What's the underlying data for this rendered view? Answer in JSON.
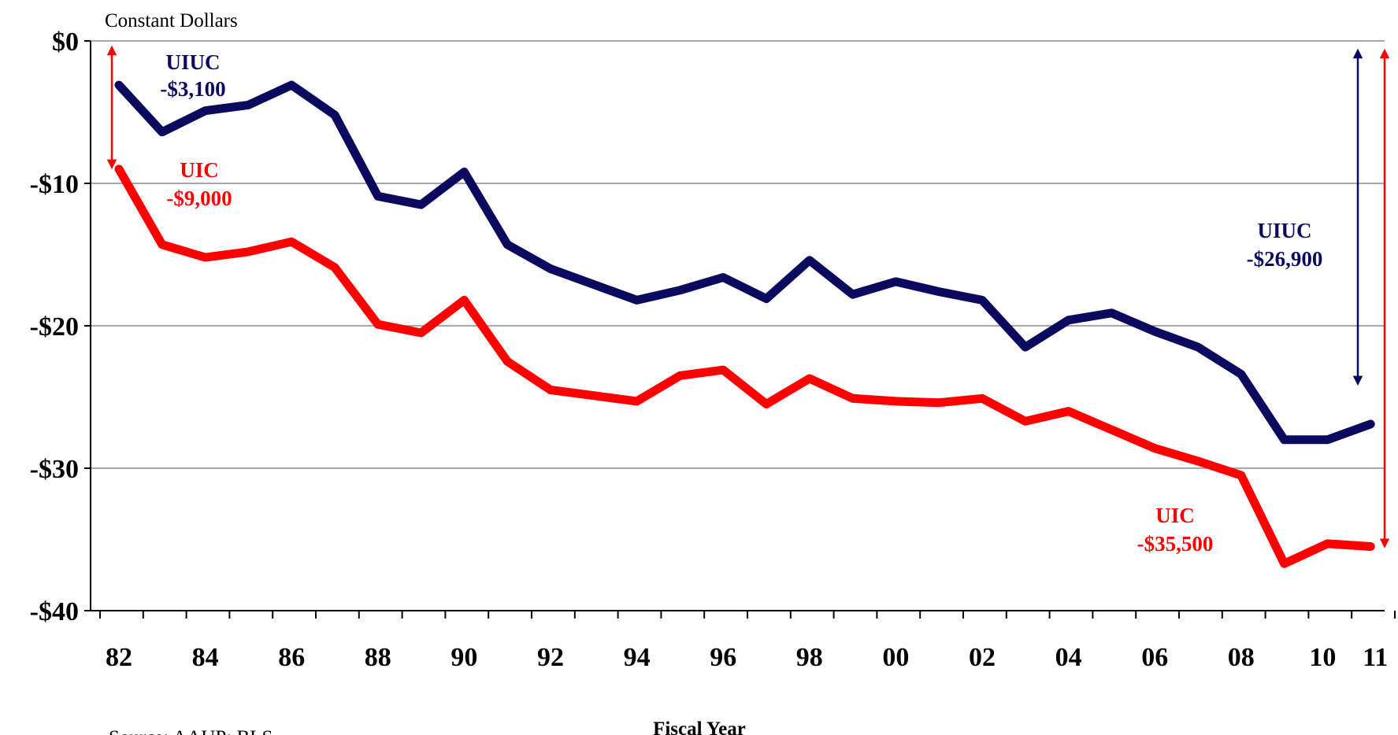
{
  "chart_data": {
    "type": "line",
    "title": "",
    "ylabel": "Constant Dollars",
    "xlabel": "Fiscal Year",
    "source": "Source:  AAUP;  BLS",
    "ylim": [
      -40,
      0
    ],
    "y_ticks": [
      0,
      -10,
      -20,
      -30,
      -40
    ],
    "y_tick_labels": [
      "$0",
      "-$10",
      "-$20",
      "-$30",
      "-$40"
    ],
    "x": [
      "82",
      "83",
      "84",
      "85",
      "86",
      "87",
      "88",
      "89",
      "90",
      "91",
      "92",
      "93",
      "94",
      "95",
      "96",
      "97",
      "98",
      "99",
      "00",
      "01",
      "02",
      "03",
      "04",
      "05",
      "06",
      "07",
      "08",
      "09",
      "10",
      "11"
    ],
    "x_tick_labels": [
      "82",
      "84",
      "86",
      "88",
      "90",
      "92",
      "94",
      "96",
      "98",
      "00",
      "02",
      "04",
      "06",
      "08",
      "10",
      "11"
    ],
    "grid": true,
    "series": [
      {
        "name": "UIUC",
        "color": "#0a0a5e",
        "values": [
          -3.1,
          -6.4,
          -4.9,
          -4.5,
          -3.1,
          -5.2,
          -10.9,
          -11.5,
          -9.2,
          -14.3,
          -16.0,
          -17.1,
          -18.2,
          -17.5,
          -16.6,
          -18.1,
          -15.4,
          -17.8,
          -16.9,
          -17.6,
          -18.2,
          -21.5,
          -19.6,
          -19.1,
          -20.4,
          -21.5,
          -23.4,
          -28.0,
          -28.0,
          -26.9
        ]
      },
      {
        "name": "UIC",
        "color": "#ff0000",
        "values": [
          -9.0,
          -14.3,
          -15.2,
          -14.8,
          -14.1,
          -15.9,
          -19.9,
          -20.5,
          -18.2,
          -22.5,
          -24.5,
          -24.9,
          -25.3,
          -23.5,
          -23.1,
          -25.5,
          -23.7,
          -25.1,
          -25.3,
          -25.4,
          -25.1,
          -26.7,
          -26.0,
          -27.3,
          -28.6,
          -29.5,
          -30.5,
          -36.7,
          -35.3,
          -35.5
        ]
      }
    ],
    "annotations": [
      {
        "series": "UIUC",
        "where": "start",
        "name": "UIUC",
        "value": "-$3,100",
        "color": "#0a0a5e"
      },
      {
        "series": "UIC",
        "where": "start",
        "name": "UIC",
        "value": "-$9,000",
        "color": "#ff0000"
      },
      {
        "series": "UIUC",
        "where": "end",
        "name": "UIUC",
        "value": "-$26,900",
        "color": "#0a0a5e"
      },
      {
        "series": "UIC",
        "where": "end",
        "name": "UIC",
        "value": "-$35,500",
        "color": "#ff0000"
      }
    ]
  }
}
